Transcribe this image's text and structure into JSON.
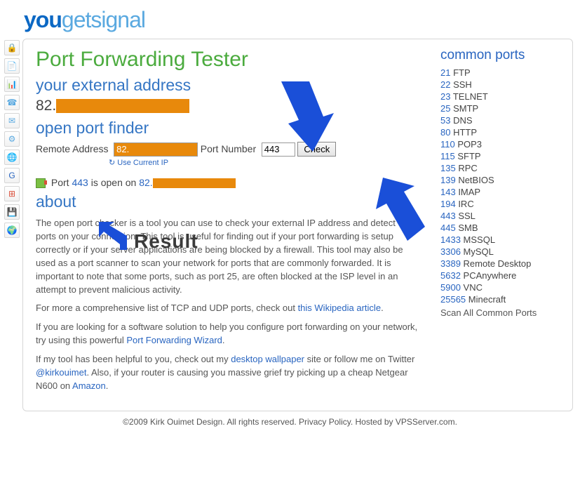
{
  "logo": {
    "you": "you",
    "get": "get",
    "signal": "signal"
  },
  "sidebar_icons": [
    {
      "name": "lock-icon",
      "glyph": "🔒",
      "color": "#d9a400"
    },
    {
      "name": "document-icon",
      "glyph": "📄",
      "color": "#5aa9e0"
    },
    {
      "name": "spreadsheet-icon",
      "glyph": "📊",
      "color": "#4bab3e"
    },
    {
      "name": "phone-icon",
      "glyph": "☎",
      "color": "#5aa9e0"
    },
    {
      "name": "mail-icon",
      "glyph": "✉",
      "color": "#5aa9e0"
    },
    {
      "name": "network-icon",
      "glyph": "⚙",
      "color": "#5aa9e0"
    },
    {
      "name": "globe-icon",
      "glyph": "🌐",
      "color": "#5aa9e0"
    },
    {
      "name": "google-icon",
      "glyph": "G",
      "color": "#2965c0"
    },
    {
      "name": "windows-icon",
      "glyph": "⊞",
      "color": "#d94f3a"
    },
    {
      "name": "disk-icon",
      "glyph": "💾",
      "color": "#5aa9e0"
    },
    {
      "name": "world-icon",
      "glyph": "🌍",
      "color": "#4bab3e"
    }
  ],
  "title": "Port Forwarding Tester",
  "external": {
    "heading": "your external address",
    "prefix": "82.",
    "redact_width": 190
  },
  "finder": {
    "heading": "open port finder",
    "remote_label": "Remote Address",
    "remote_value": "82.",
    "remote_redact_width": 120,
    "port_label": "Port Number",
    "port_value": "443",
    "check_label": "Check",
    "use_current": "Use Current IP"
  },
  "status": {
    "pre": "Port ",
    "port": "443",
    "mid": " is open on ",
    "ip_prefix": "82.",
    "redact_width": 118
  },
  "about": {
    "heading": "about",
    "p1": "The open port checker is a tool you can use to check your external IP address and detect open ports on your connection. This tool is useful for finding out if your port forwarding is setup correctly or if your server applications are being blocked by a firewall. This tool may also be used as a port scanner to scan your network for ports that are commonly forwarded. It is important to note that some ports, such as port 25, are often blocked at the ISP level in an attempt to prevent malicious activity.",
    "p2a": "For more a comprehensive list of TCP and UDP ports, check out ",
    "p2link": "this Wikipedia article",
    "p2b": ".",
    "p3a": "If you are looking for a software solution to help you configure port forwarding on your network, try using this powerful ",
    "p3link": "Port Forwarding Wizard",
    "p3b": ".",
    "p4a": "If my tool has been helpful to you, check out my ",
    "p4link1": "desktop wallpaper",
    "p4b": " site or follow me on Twitter ",
    "p4link2": "@kirkouimet",
    "p4c": ". Also, if your router is causing you massive grief try picking up a cheap Netgear N600 on ",
    "p4link3": "Amazon",
    "p4d": "."
  },
  "common": {
    "heading": "common ports",
    "ports": [
      {
        "n": "21",
        "l": "FTP"
      },
      {
        "n": "22",
        "l": "SSH"
      },
      {
        "n": "23",
        "l": "TELNET"
      },
      {
        "n": "25",
        "l": "SMTP"
      },
      {
        "n": "53",
        "l": "DNS"
      },
      {
        "n": "80",
        "l": "HTTP"
      },
      {
        "n": "110",
        "l": "POP3"
      },
      {
        "n": "115",
        "l": "SFTP"
      },
      {
        "n": "135",
        "l": "RPC"
      },
      {
        "n": "139",
        "l": "NetBIOS"
      },
      {
        "n": "143",
        "l": "IMAP"
      },
      {
        "n": "194",
        "l": "IRC"
      },
      {
        "n": "443",
        "l": "SSL"
      },
      {
        "n": "445",
        "l": "SMB"
      },
      {
        "n": "1433",
        "l": "MSSQL"
      },
      {
        "n": "3306",
        "l": "MySQL"
      },
      {
        "n": "3389",
        "l": "Remote Desktop"
      },
      {
        "n": "5632",
        "l": "PCAnywhere"
      },
      {
        "n": "5900",
        "l": "VNC"
      },
      {
        "n": "25565",
        "l": "Minecraft"
      }
    ],
    "scan": "Scan All Common Ports"
  },
  "footer": {
    "a": "©2009 ",
    "l1": "Kirk Ouimet Design",
    "b": ". All rights reserved. ",
    "l2": "Privacy Policy",
    "c": ". Hosted by ",
    "l3": "VPSServer.com",
    "d": "."
  },
  "annotations": {
    "result_label": "Result",
    "arrow_color": "#1a4fd8"
  }
}
